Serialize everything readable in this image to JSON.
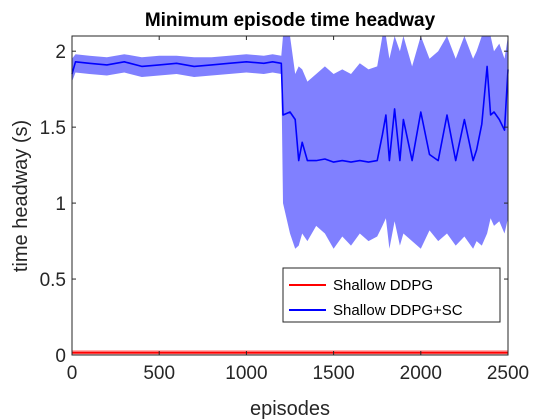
{
  "chart_data": {
    "type": "line",
    "title": "Minimum episode time headway",
    "xlabel": "episodes",
    "ylabel": "time headway (s)",
    "xlim": [
      0,
      2500
    ],
    "ylim": [
      0,
      2.1
    ],
    "xticks": [
      0,
      500,
      1000,
      1500,
      2000,
      2500
    ],
    "yticks": [
      0,
      0.5,
      1,
      1.5,
      2
    ],
    "xtick_labels": [
      "0",
      "500",
      "1000",
      "1500",
      "2000",
      "2500"
    ],
    "ytick_labels": [
      "0",
      "0.5",
      "1",
      "1.5",
      "2"
    ],
    "grid": false,
    "legend_position": "bottom-right",
    "series": [
      {
        "name": "Shallow DDPG",
        "color": "#ff0000",
        "band_color": "#ff8080",
        "x": [
          0,
          250,
          500,
          750,
          1000,
          1250,
          1500,
          1750,
          2000,
          2250,
          2500
        ],
        "y": [
          0.015,
          0.015,
          0.015,
          0.015,
          0.015,
          0.015,
          0.015,
          0.015,
          0.015,
          0.015,
          0.015
        ],
        "band_low": [
          0.005,
          0.005,
          0.005,
          0.005,
          0.005,
          0.005,
          0.005,
          0.005,
          0.005,
          0.005,
          0.005
        ],
        "band_high": [
          0.03,
          0.03,
          0.03,
          0.03,
          0.03,
          0.03,
          0.03,
          0.03,
          0.03,
          0.03,
          0.03
        ]
      },
      {
        "name": "Shallow DDPG+SC",
        "color": "#0000ff",
        "band_color": "#8080ff",
        "x": [
          0,
          20,
          100,
          200,
          300,
          400,
          500,
          600,
          700,
          800,
          900,
          1000,
          1100,
          1150,
          1200,
          1210,
          1250,
          1280,
          1300,
          1320,
          1350,
          1400,
          1450,
          1500,
          1550,
          1600,
          1650,
          1700,
          1750,
          1780,
          1800,
          1820,
          1850,
          1880,
          1900,
          1950,
          2000,
          2050,
          2100,
          2150,
          2200,
          2250,
          2300,
          2320,
          2350,
          2380,
          2400,
          2420,
          2450,
          2480,
          2500
        ],
        "y": [
          1.85,
          1.93,
          1.92,
          1.91,
          1.93,
          1.9,
          1.91,
          1.92,
          1.9,
          1.91,
          1.92,
          1.93,
          1.92,
          1.93,
          1.92,
          1.58,
          1.6,
          1.55,
          1.28,
          1.4,
          1.28,
          1.28,
          1.29,
          1.27,
          1.28,
          1.27,
          1.28,
          1.27,
          1.28,
          1.45,
          1.58,
          1.28,
          1.62,
          1.28,
          1.55,
          1.28,
          1.6,
          1.32,
          1.28,
          1.58,
          1.28,
          1.55,
          1.28,
          1.35,
          1.52,
          1.9,
          1.58,
          1.6,
          1.55,
          1.48,
          1.88
        ],
        "band_low": [
          1.8,
          1.86,
          1.85,
          1.84,
          1.86,
          1.83,
          1.84,
          1.85,
          1.83,
          1.84,
          1.85,
          1.86,
          1.85,
          1.86,
          1.85,
          1.0,
          0.8,
          0.7,
          0.72,
          0.8,
          0.75,
          0.85,
          0.8,
          0.7,
          0.78,
          0.72,
          0.8,
          0.75,
          0.78,
          0.85,
          0.9,
          0.7,
          0.88,
          0.72,
          0.8,
          0.75,
          0.7,
          0.82,
          0.75,
          0.8,
          0.72,
          0.78,
          0.7,
          0.75,
          0.72,
          0.8,
          0.9,
          0.85,
          0.88,
          0.8,
          0.9
        ],
        "band_high": [
          1.95,
          1.98,
          1.97,
          1.96,
          1.98,
          1.96,
          1.97,
          1.97,
          1.96,
          1.96,
          1.97,
          1.98,
          1.97,
          1.98,
          1.97,
          2.1,
          2.1,
          1.85,
          1.9,
          1.88,
          1.8,
          1.85,
          1.9,
          1.85,
          1.88,
          1.85,
          1.92,
          1.88,
          1.9,
          2.1,
          2.1,
          1.95,
          2.1,
          2.0,
          2.1,
          1.9,
          2.1,
          1.95,
          2.0,
          2.1,
          1.95,
          2.1,
          1.95,
          2.0,
          2.1,
          2.1,
          2.1,
          2.0,
          2.05,
          1.95,
          2.1
        ]
      }
    ]
  }
}
